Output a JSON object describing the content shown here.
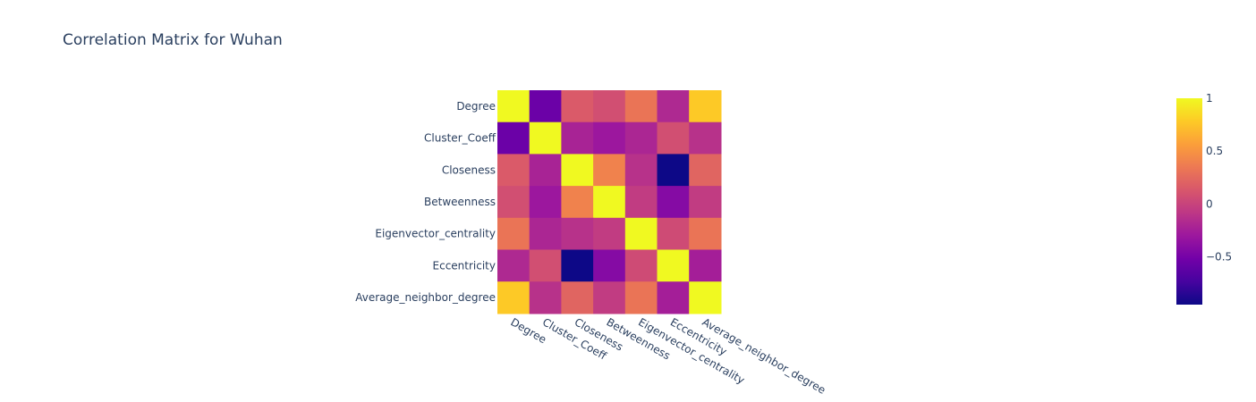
{
  "chart_data": {
    "type": "heatmap",
    "title": "Correlation Matrix for Wuhan",
    "x_categories": [
      "Degree",
      "Cluster_Coeff",
      "Closeness",
      "Betweenness",
      "Eigenvector_centrality",
      "Eccentricity",
      "Average_neighbor_degree"
    ],
    "y_categories": [
      "Degree",
      "Cluster_Coeff",
      "Closeness",
      "Betweenness",
      "Eigenvector_centrality",
      "Eccentricity",
      "Average_neighbor_degree"
    ],
    "z": [
      [
        1.0,
        -0.55,
        0.15,
        0.08,
        0.32,
        -0.18,
        0.78
      ],
      [
        -0.55,
        1.0,
        -0.22,
        -0.3,
        -0.2,
        0.08,
        -0.12
      ],
      [
        0.15,
        -0.22,
        1.0,
        0.4,
        -0.12,
        -0.95,
        0.22
      ],
      [
        0.08,
        -0.3,
        0.4,
        1.0,
        -0.05,
        -0.42,
        -0.05
      ],
      [
        0.32,
        -0.2,
        -0.12,
        -0.05,
        1.0,
        0.05,
        0.32
      ],
      [
        -0.18,
        0.08,
        -0.95,
        -0.42,
        0.05,
        1.0,
        -0.25
      ],
      [
        0.78,
        -0.12,
        0.22,
        -0.05,
        0.32,
        -0.25,
        1.0
      ]
    ],
    "zmin": -0.95,
    "zmax": 1.0,
    "colorscale": [
      "#0d0887",
      "#46039f",
      "#7201a8",
      "#9c179e",
      "#bd3786",
      "#d8576b",
      "#ed7953",
      "#fb9f3a",
      "#fdca26",
      "#f0f921"
    ],
    "colorbar_ticks": [
      1,
      0.5,
      0,
      -0.5
    ],
    "colorbar_tick_labels": [
      "1",
      "0.5",
      "0",
      "−0.5"
    ],
    "title_color": "#2a3f5f",
    "label_color": "#2a3f5f"
  }
}
